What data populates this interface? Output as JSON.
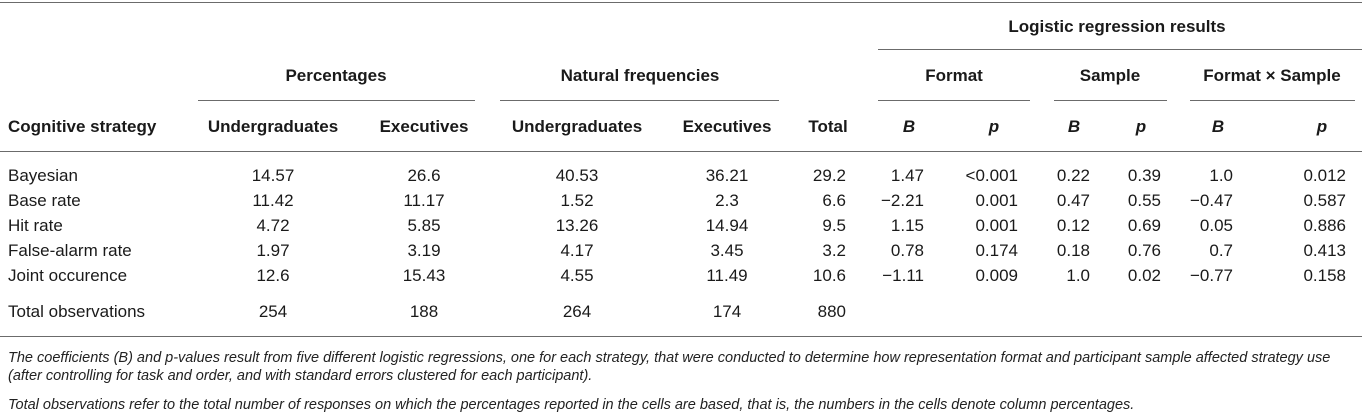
{
  "headers": {
    "logistic": "Logistic regression results",
    "percentages": "Percentages",
    "natural": "Natural frequencies",
    "format": "Format",
    "sample": "Sample",
    "interaction": "Format × Sample",
    "strategy": "Cognitive strategy",
    "pct_under": "Undergraduates",
    "pct_exec": "Executives",
    "nf_under": "Undergraduates",
    "nf_exec": "Executives",
    "total": "Total",
    "format_b": "B",
    "format_p": "p",
    "sample_b": "B",
    "sample_p": "p",
    "inter_b": "B",
    "inter_p": "p"
  },
  "rows": [
    {
      "strategy": "Bayesian",
      "pct_under": "14.57",
      "pct_exec": "26.6",
      "nf_under": "40.53",
      "nf_exec": "36.21",
      "total": "29.2",
      "format_b": "1.47",
      "format_p": "<0.001",
      "sample_b": "0.22",
      "sample_p": "0.39",
      "inter_b": "1.0",
      "inter_p": "0.012"
    },
    {
      "strategy": "Base rate",
      "pct_under": "11.42",
      "pct_exec": "11.17",
      "nf_under": "1.52",
      "nf_exec": "2.3",
      "total": "6.6",
      "format_b": "−2.21",
      "format_p": "0.001",
      "sample_b": "0.47",
      "sample_p": "0.55",
      "inter_b": "−0.47",
      "inter_p": "0.587"
    },
    {
      "strategy": "Hit rate",
      "pct_under": "4.72",
      "pct_exec": "5.85",
      "nf_under": "13.26",
      "nf_exec": "14.94",
      "total": "9.5",
      "format_b": "1.15",
      "format_p": "0.001",
      "sample_b": "0.12",
      "sample_p": "0.69",
      "inter_b": "0.05",
      "inter_p": "0.886"
    },
    {
      "strategy": "False-alarm rate",
      "pct_under": "1.97",
      "pct_exec": "3.19",
      "nf_under": "4.17",
      "nf_exec": "3.45",
      "total": "3.2",
      "format_b": "0.78",
      "format_p": "0.174",
      "sample_b": "0.18",
      "sample_p": "0.76",
      "inter_b": "0.7",
      "inter_p": "0.413"
    },
    {
      "strategy": "Joint occurence",
      "pct_under": "12.6",
      "pct_exec": "15.43",
      "nf_under": "4.55",
      "nf_exec": "11.49",
      "total": "10.6",
      "format_b": "−1.11",
      "format_p": "0.009",
      "sample_b": "1.0",
      "sample_p": "0.02",
      "inter_b": "−0.77",
      "inter_p": "0.158"
    }
  ],
  "totals": {
    "strategy": "Total observations",
    "pct_under": "254",
    "pct_exec": "188",
    "nf_under": "264",
    "nf_exec": "174",
    "total": "880"
  },
  "notes": [
    "The coefficients (B) and p-values result from five different logistic regressions, one for each strategy, that were conducted to determine how representation format and participant sample affected strategy use (after controlling for task and order, and with standard errors clustered for each participant).",
    "Total observations refer to the total number of responses on which the percentages reported in the cells are based, that is, the numbers in the cells denote column percentages."
  ]
}
